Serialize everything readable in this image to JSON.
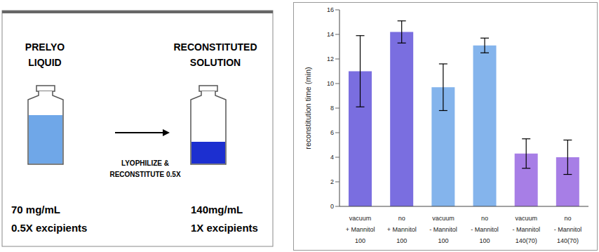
{
  "diagram": {
    "prelyo": [
      "PRELYO",
      "LIQUID"
    ],
    "reconstituted": [
      "RECONSTITUTED",
      "SOLUTION"
    ],
    "arrow_label": [
      "LYOPHILIZE &",
      "RECONSTITUTE 0.5X"
    ],
    "before": [
      "70 mg/mL",
      "0.5X excipients"
    ],
    "after": [
      "140mg/mL",
      "1X excipients"
    ]
  },
  "chart_data": {
    "type": "bar",
    "y_label": "reconstitution time (min)",
    "categories": [
      "vacuum\n+ Mannitol\n100",
      "no\n+ Mannitol\n100",
      "vacuum\n- Mannitol\n100",
      "no\n- Mannitol\n100",
      "vacuum\n- Mannitol\n140(70)",
      "no\n- Mannitol\n140(70)"
    ],
    "values": [
      11,
      14.2,
      9.7,
      13.1,
      4.3,
      4.0
    ],
    "errors": [
      2.9,
      0.9,
      1.9,
      0.6,
      1.2,
      1.4
    ],
    "colors": [
      "#7a6ee0",
      "#7a6ee0",
      "#84b4ec",
      "#84b4ec",
      "#a77ee6",
      "#a77ee6"
    ],
    "ylim": [
      0,
      16
    ],
    "yticks": [
      0,
      2,
      4,
      6,
      8,
      10,
      12,
      14,
      16
    ],
    "grid": false
  }
}
